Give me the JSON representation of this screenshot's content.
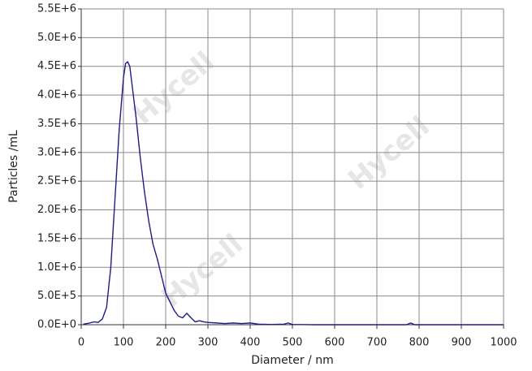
{
  "chart_data": {
    "type": "line",
    "x_label": "Diameter / nm",
    "y_label": "Particles /mL",
    "watermark": "Hycell",
    "color": "#1c1c8a",
    "grid": true,
    "xlim": [
      0,
      1000
    ],
    "xticks": [
      0,
      100,
      200,
      300,
      400,
      500,
      600,
      700,
      800,
      900,
      1000
    ],
    "ylim": [
      0,
      5500000
    ],
    "yticks": [
      {
        "value": 0,
        "label": "0.0E+0"
      },
      {
        "value": 500000,
        "label": "5.0E+5"
      },
      {
        "value": 1000000,
        "label": "1.0E+6"
      },
      {
        "value": 1500000,
        "label": "1.5E+6"
      },
      {
        "value": 2000000,
        "label": "2.0E+6"
      },
      {
        "value": 2500000,
        "label": "2.5E+6"
      },
      {
        "value": 3000000,
        "label": "3.0E+6"
      },
      {
        "value": 3500000,
        "label": "3.5E+6"
      },
      {
        "value": 4000000,
        "label": "4.0E+6"
      },
      {
        "value": 4500000,
        "label": "4.5E+6"
      },
      {
        "value": 5000000,
        "label": "5.0E+6"
      },
      {
        "value": 5500000,
        "label": "5.5E+6"
      }
    ],
    "x": [
      5,
      20,
      30,
      40,
      50,
      60,
      70,
      80,
      90,
      100,
      105,
      110,
      115,
      120,
      130,
      140,
      150,
      160,
      170,
      180,
      190,
      200,
      210,
      220,
      230,
      240,
      250,
      260,
      270,
      280,
      290,
      300,
      320,
      340,
      360,
      380,
      400,
      420,
      450,
      480,
      490,
      500,
      550,
      600,
      700,
      770,
      780,
      790,
      850,
      1000
    ],
    "values": [
      10000,
      30000,
      50000,
      40000,
      100000,
      300000,
      1000000,
      2200000,
      3400000,
      4300000,
      4550000,
      4580000,
      4500000,
      4200000,
      3600000,
      2900000,
      2300000,
      1800000,
      1400000,
      1150000,
      850000,
      550000,
      400000,
      250000,
      150000,
      120000,
      200000,
      120000,
      50000,
      70000,
      50000,
      40000,
      30000,
      20000,
      30000,
      20000,
      30000,
      10000,
      5000,
      10000,
      30000,
      5000,
      0,
      0,
      0,
      0,
      30000,
      0,
      0,
      0
    ]
  }
}
